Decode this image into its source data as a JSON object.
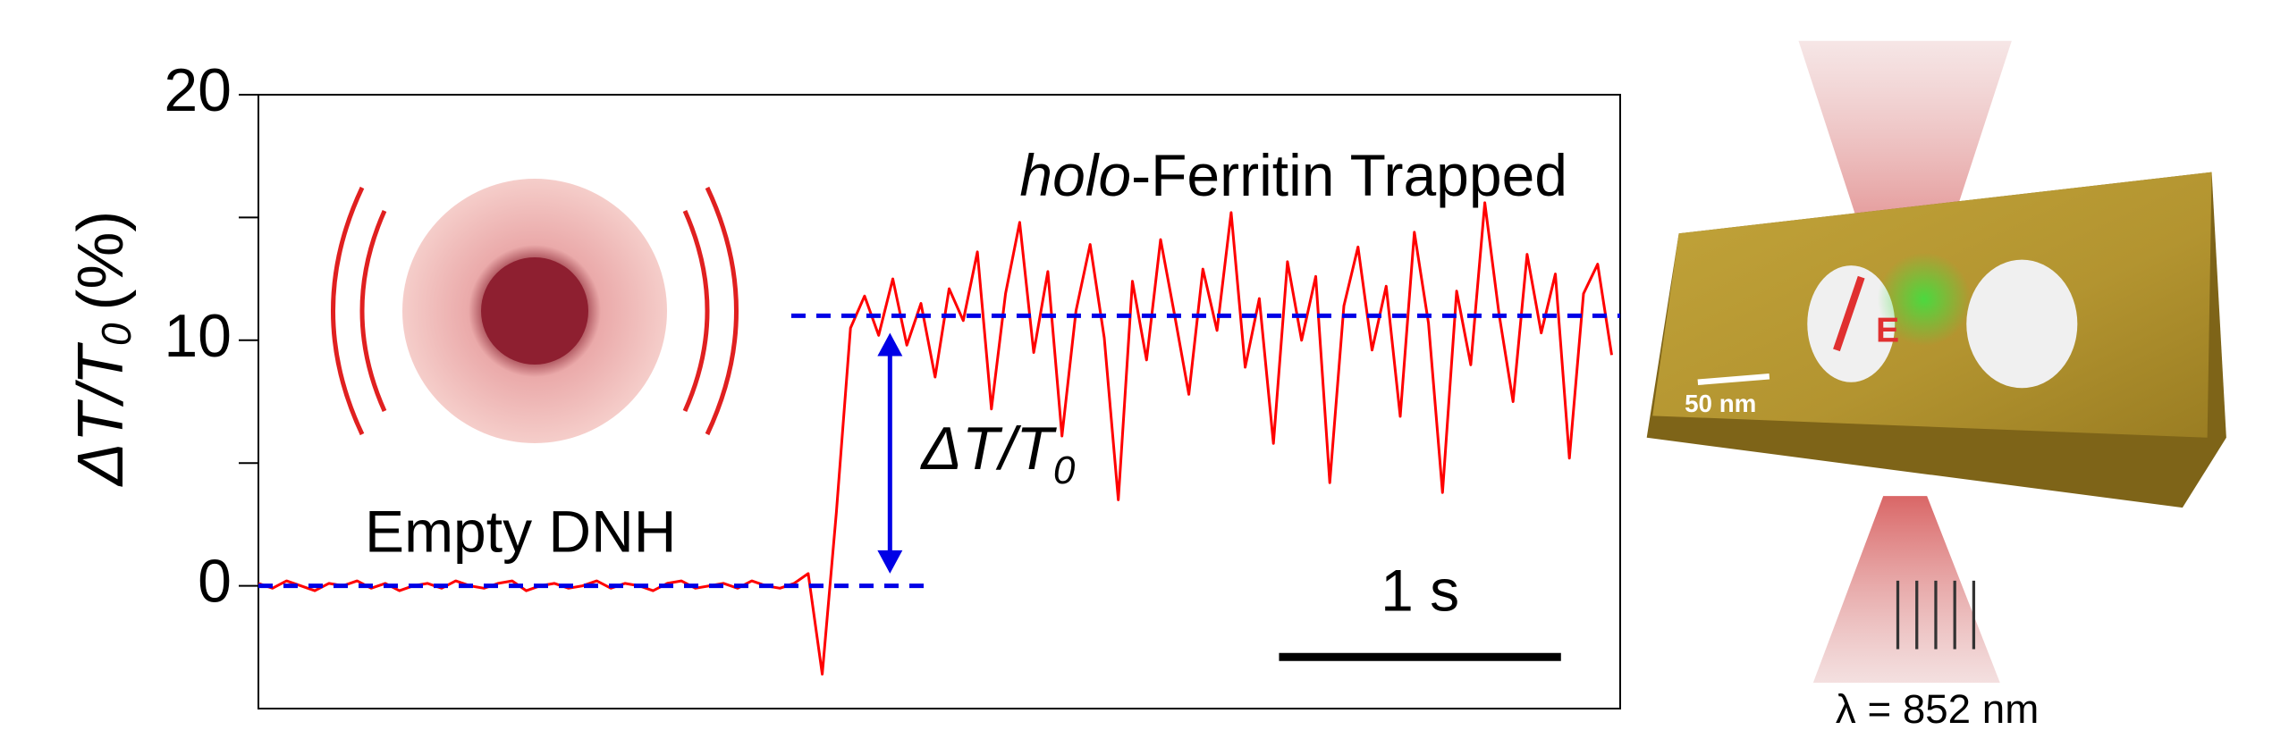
{
  "chart_data": {
    "type": "line",
    "y_label": {
      "main": "ΔT/T",
      "sub": "0",
      "unit": "(%)"
    },
    "ylim": [
      -5,
      20
    ],
    "yticks": [
      0,
      10,
      20
    ],
    "minor_yticks": [
      5,
      15
    ],
    "xlim": [
      0,
      4.83
    ],
    "series": [
      {
        "color": "#ff0000",
        "x": [
          0,
          0.05,
          0.1,
          0.15,
          0.2,
          0.25,
          0.3,
          0.35,
          0.4,
          0.45,
          0.5,
          0.55,
          0.6,
          0.65,
          0.7,
          0.75,
          0.8,
          0.85,
          0.9,
          0.95,
          1,
          1.05,
          1.1,
          1.15,
          1.2,
          1.25,
          1.3,
          1.35,
          1.4,
          1.45,
          1.5,
          1.55,
          1.6,
          1.65,
          1.7,
          1.75,
          1.8,
          1.85,
          1.9,
          1.95,
          2,
          2.05,
          2.1,
          2.15,
          2.2,
          2.25,
          2.3,
          2.35,
          2.4,
          2.45,
          2.5,
          2.55,
          2.6,
          2.65,
          2.7,
          2.75,
          2.8,
          2.85,
          2.9,
          2.95,
          3,
          3.05,
          3.1,
          3.15,
          3.2,
          3.25,
          3.3,
          3.35,
          3.4,
          3.45,
          3.5,
          3.55,
          3.6,
          3.65,
          3.7,
          3.75,
          3.8,
          3.85,
          3.9,
          3.95,
          4,
          4.05,
          4.1,
          4.15,
          4.2,
          4.25,
          4.3,
          4.35,
          4.4,
          4.45,
          4.5,
          4.55,
          4.6,
          4.65,
          4.7,
          4.75,
          4.8
        ],
        "values": [
          0.1,
          -0.1,
          0.2,
          0,
          -0.2,
          0.1,
          0,
          0.2,
          -0.1,
          0.1,
          -0.2,
          0,
          0.1,
          -0.1,
          0.2,
          0,
          -0.1,
          0.1,
          0.2,
          -0.2,
          0,
          0.1,
          -0.1,
          0,
          0.2,
          -0.1,
          0.1,
          0,
          -0.2,
          0.1,
          0.2,
          -0.1,
          0,
          0.1,
          -0.1,
          0.2,
          0,
          -0.1,
          0.1,
          0.5,
          -3.6,
          3,
          10.5,
          11.8,
          10.2,
          12.5,
          9.8,
          11.5,
          8.5,
          12.1,
          10.8,
          13.6,
          7.2,
          11.9,
          14.8,
          9.5,
          12.8,
          6.1,
          11.2,
          13.9,
          10.1,
          3.5,
          12.4,
          9.2,
          14.1,
          11.0,
          7.8,
          12.9,
          10.4,
          15.2,
          8.9,
          11.7,
          5.8,
          13.2,
          10.0,
          12.6,
          4.2,
          11.4,
          13.8,
          9.6,
          12.2,
          6.9,
          14.4,
          10.7,
          3.8,
          12.0,
          9.0,
          15.6,
          11.1,
          7.5,
          13.5,
          10.3,
          12.7,
          5.2,
          11.9,
          13.1,
          9.4
        ]
      }
    ],
    "reference_lines": [
      {
        "value": 0,
        "x_range": [
          0,
          2.36
        ],
        "color": "#0000e6"
      },
      {
        "value": 11,
        "x_range": [
          1.89,
          4.83
        ],
        "color": "#0000e6"
      }
    ],
    "delta_arrow": {
      "x": 2.24,
      "from": 0.5,
      "to": 10.3,
      "color": "#0000e6",
      "label": {
        "main": "ΔT/T",
        "sub": "0"
      }
    },
    "annotations": [
      {
        "italic": "holo",
        "text": "-Ferritin Trapped",
        "x": 2.7,
        "y": 16.5
      },
      {
        "text": "Empty DNH",
        "x": 0.93,
        "y": 2
      },
      {
        "text": "1 s",
        "x": 4.12,
        "y": -0.4
      }
    ],
    "scale_bar": {
      "x": [
        3.62,
        4.62
      ],
      "y": -2.9,
      "color": "#000000"
    }
  },
  "illustration": {
    "scale_label": "50 nm",
    "field_label": "E",
    "wavelength": "λ =  852 nm"
  }
}
